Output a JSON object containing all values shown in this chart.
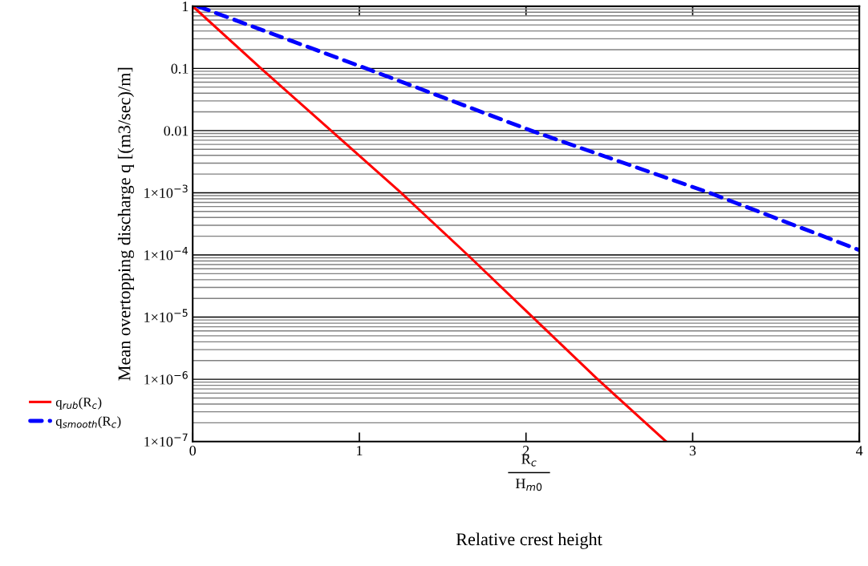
{
  "chart_data": {
    "type": "line",
    "xlabel": "Relative crest height",
    "ylabel": "Mean overtopping discharge q [(m3/sec)/m]",
    "annotations": [
      "R$_{c}$",
      "H$_{m0}$"
    ],
    "series": [
      {
        "name": "q$_{rub}$(R$_{c}$)",
        "color": "#ff0000",
        "line_style": "solid",
        "x": [
          0,
          0.41,
          0.83,
          1.25,
          1.65,
          2.04,
          2.43,
          2.84
        ],
        "values": [
          1,
          0.1,
          0.01,
          0.001,
          0.0001,
          1e-05,
          1e-06,
          1e-07
        ]
      },
      {
        "name": "q$_{smooth}$(R$_{c}$)",
        "color": "#0000ff",
        "line_style": "dashed",
        "x": [
          0.03,
          1.04,
          2.03,
          3.1,
          4
        ],
        "values": [
          1,
          0.1,
          0.01,
          0.001,
          0.00012
        ]
      }
    ],
    "log": "y",
    "xlim": [
      0,
      4
    ],
    "xticks": [
      0,
      1,
      2,
      3,
      4
    ],
    "ylim": [
      1e-07,
      1
    ],
    "yticks": [
      1,
      0.1,
      0.01,
      {
        "value": 0.001,
        "label": "1×10$^{−3}$"
      },
      {
        "value": 0.0001,
        "label": "1×10$^{−4}$"
      },
      {
        "value": 1e-05,
        "label": "1×10$^{−5}$"
      },
      {
        "value": 1e-06,
        "label": "1×10$^{−6}$"
      },
      {
        "value": 1e-07,
        "label": "1×10$^{−7}$"
      }
    ],
    "grid": "y",
    "legend": "left"
  }
}
